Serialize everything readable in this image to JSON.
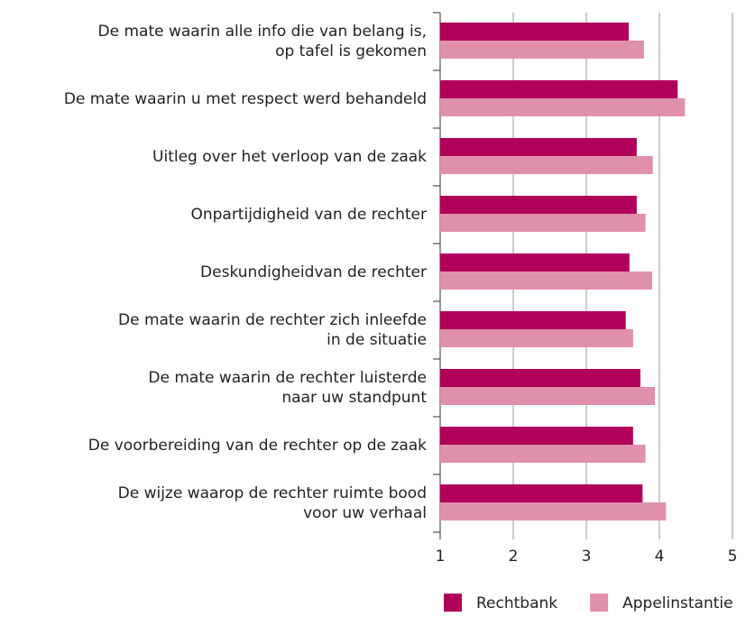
{
  "chart_data": {
    "type": "hbar",
    "categories": [
      "De mate waarin alle info die van belang is,\nop tafel is gekomen",
      "De mate waarin u met respect werd behandeld",
      "Uitleg over het verloop van de zaak",
      "Onpartijdigheid van de rechter",
      "Deskundigheidvan de rechter",
      "De mate waarin de rechter zich inleefde\nin de situatie",
      "De mate waarin de rechter luisterde\nnaar uw standpunt",
      "De voorbereiding van de rechter op de zaak",
      "De wijze waarop de rechter ruimte bood\nvoor uw verhaal"
    ],
    "series": [
      {
        "name": "Rechtbank",
        "color": "#b0005a",
        "values": [
          3.58,
          4.25,
          3.69,
          3.69,
          3.59,
          3.54,
          3.74,
          3.64,
          3.77
        ]
      },
      {
        "name": "Appelinstantie",
        "color": "#e190ac",
        "values": [
          3.79,
          4.35,
          3.91,
          3.81,
          3.9,
          3.64,
          3.94,
          3.81,
          4.09
        ]
      }
    ],
    "xlim": [
      1,
      5
    ],
    "xticks": [
      1,
      2,
      3,
      4,
      5
    ],
    "grid": true,
    "legend": "bottom"
  }
}
